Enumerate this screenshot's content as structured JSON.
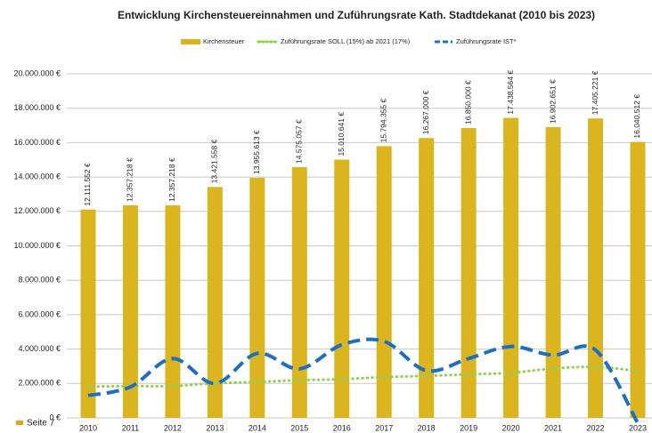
{
  "chart_data": {
    "type": "bar",
    "title": "Entwicklung Kirchensteuereinnahmen und Zuführungsrate Kath. Stadtdekanat (2010 bis 2023)",
    "categories": [
      "2010",
      "2011",
      "2012",
      "2013",
      "2014",
      "2015",
      "2016",
      "2017",
      "2018",
      "2019",
      "2020",
      "2021",
      "2022",
      "2023"
    ],
    "series": [
      {
        "name": "Kirchensteuer",
        "color": "#dab520",
        "kind": "bar",
        "values": [
          12111552,
          12357218,
          12357218,
          13421558,
          13955613,
          14575057,
          15010641,
          15794355,
          16267000,
          16850000,
          17438564,
          16902651,
          17405221,
          16040512
        ],
        "value_labels": [
          "12.111.552 €",
          "12.357.218 €",
          "12.357.218 €",
          "13.421.558 €",
          "13.955.613 €",
          "14.575.057 €",
          "15.010.641 €",
          "15.794.355 €",
          "16.267.000 €",
          "16.850.000 €",
          "17.438.564 €",
          "16.902.651 €",
          "17.405.221 €",
          "16.040.512 €"
        ]
      },
      {
        "name": "Zuführungsrate SOLL (15%) ab 2021 (17%)",
        "color": "#92d050",
        "kind": "dotted",
        "values": [
          1820000,
          1850000,
          1850000,
          2010000,
          2090000,
          2190000,
          2250000,
          2370000,
          2440000,
          2530000,
          2620000,
          2870000,
          2960000,
          2730000
        ]
      },
      {
        "name": "Zuführungsrate IST*",
        "color": "#1f6fc0",
        "kind": "dashed",
        "values": [
          1300000,
          1800000,
          3450000,
          2000000,
          3750000,
          2850000,
          4250000,
          4450000,
          2750000,
          3450000,
          4150000,
          3650000,
          3950000,
          -300000
        ]
      }
    ],
    "ylim": [
      0,
      20000000
    ],
    "yticks": [
      {
        "value": 0,
        "label": "0 €"
      },
      {
        "value": 2000000,
        "label": "2.000.000 €"
      },
      {
        "value": 4000000,
        "label": "4.000.000 €"
      },
      {
        "value": 6000000,
        "label": "6.000.000 €"
      },
      {
        "value": 8000000,
        "label": "8.000.000 €"
      },
      {
        "value": 10000000,
        "label": "10.000.000 €"
      },
      {
        "value": 12000000,
        "label": "12.000.000 €"
      },
      {
        "value": 14000000,
        "label": "14.000.000 €"
      },
      {
        "value": 16000000,
        "label": "16.000.000 €"
      },
      {
        "value": 18000000,
        "label": "18.000.000 €"
      },
      {
        "value": 20000000,
        "label": "20.000.000 €"
      }
    ],
    "grid": true,
    "legend": "top",
    "footer": "Seite 7"
  }
}
